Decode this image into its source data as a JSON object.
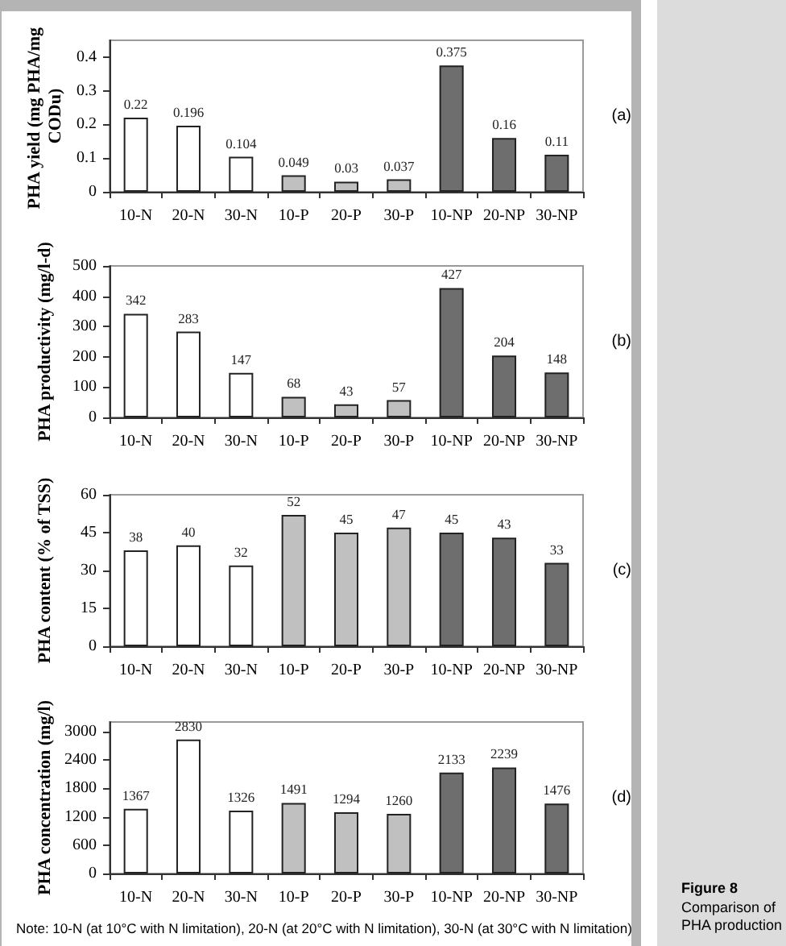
{
  "chart_data": [
    {
      "type": "bar",
      "annotations": [
        "(a)"
      ],
      "ylabel": "PHA yield (mg PHA/mg CODu)",
      "categories": [
        "10-N",
        "20-N",
        "30-N",
        "10-P",
        "20-P",
        "30-P",
        "10-NP",
        "20-NP",
        "30-NP"
      ],
      "values": [
        0.22,
        0.196,
        0.104,
        0.049,
        0.03,
        0.037,
        0.375,
        0.16,
        0.11
      ],
      "colors": [
        "#ffffff",
        "#ffffff",
        "#ffffff",
        "#c0c0c0",
        "#c0c0c0",
        "#c0c0c0",
        "#6e6e6e",
        "#6e6e6e",
        "#6e6e6e"
      ],
      "ylim": [
        0,
        0.45
      ],
      "yticks": [
        0,
        0.1,
        0.2,
        0.3,
        0.4
      ],
      "data_labels": true,
      "grid": false
    },
    {
      "type": "bar",
      "annotations": [
        "(b)"
      ],
      "ylabel": "PHA productivity (mg/l-d)",
      "categories": [
        "10-N",
        "20-N",
        "30-N",
        "10-P",
        "20-P",
        "30-P",
        "10-NP",
        "20-NP",
        "30-NP"
      ],
      "values": [
        342,
        283,
        147,
        68,
        43,
        57,
        427,
        204,
        148
      ],
      "colors": [
        "#ffffff",
        "#ffffff",
        "#ffffff",
        "#c0c0c0",
        "#c0c0c0",
        "#c0c0c0",
        "#6e6e6e",
        "#6e6e6e",
        "#6e6e6e"
      ],
      "ylim": [
        0,
        500
      ],
      "yticks": [
        0,
        100,
        200,
        300,
        400,
        500
      ],
      "data_labels": true,
      "grid": false
    },
    {
      "type": "bar",
      "annotations": [
        "(c)"
      ],
      "ylabel": "PHA content (% of TSS)",
      "categories": [
        "10-N",
        "20-N",
        "30-N",
        "10-P",
        "20-P",
        "30-P",
        "10-NP",
        "20-NP",
        "30-NP"
      ],
      "values": [
        38,
        40,
        32,
        52,
        45,
        47,
        45,
        43,
        33
      ],
      "colors": [
        "#ffffff",
        "#ffffff",
        "#ffffff",
        "#c0c0c0",
        "#c0c0c0",
        "#c0c0c0",
        "#6e6e6e",
        "#6e6e6e",
        "#6e6e6e"
      ],
      "ylim": [
        0,
        60
      ],
      "yticks": [
        0,
        15,
        30,
        45,
        60
      ],
      "data_labels": true,
      "grid": false
    },
    {
      "type": "bar",
      "ylabel": "PHA concentration (mg/l)",
      "categories": [
        "10-N",
        "20-N",
        "30-N",
        "10-P",
        "20-P",
        "30-P",
        "10-NP",
        "20-NP",
        "30-NP"
      ],
      "values": [
        1367,
        2830,
        1326,
        1491,
        1294,
        1260,
        2133,
        2239,
        1476
      ],
      "colors": [
        "#ffffff",
        "#ffffff",
        "#ffffff",
        "#c0c0c0",
        "#c0c0c0",
        "#c0c0c0",
        "#6e6e6e",
        "#6e6e6e",
        "#6e6e6e"
      ],
      "ylim": [
        0,
        3200
      ],
      "yticks": [
        0,
        600,
        1200,
        1800,
        2400,
        3000
      ],
      "data_labels": true,
      "grid": false,
      "annotations": [
        "(d)",
        "Note:   10-N (at 10°C with N limitation), 20-N (at 20°C with N limitation), 30-N (at 30°C with N limitation)",
        "Figure 8",
        "Comparison of PHA production"
      ]
    }
  ]
}
